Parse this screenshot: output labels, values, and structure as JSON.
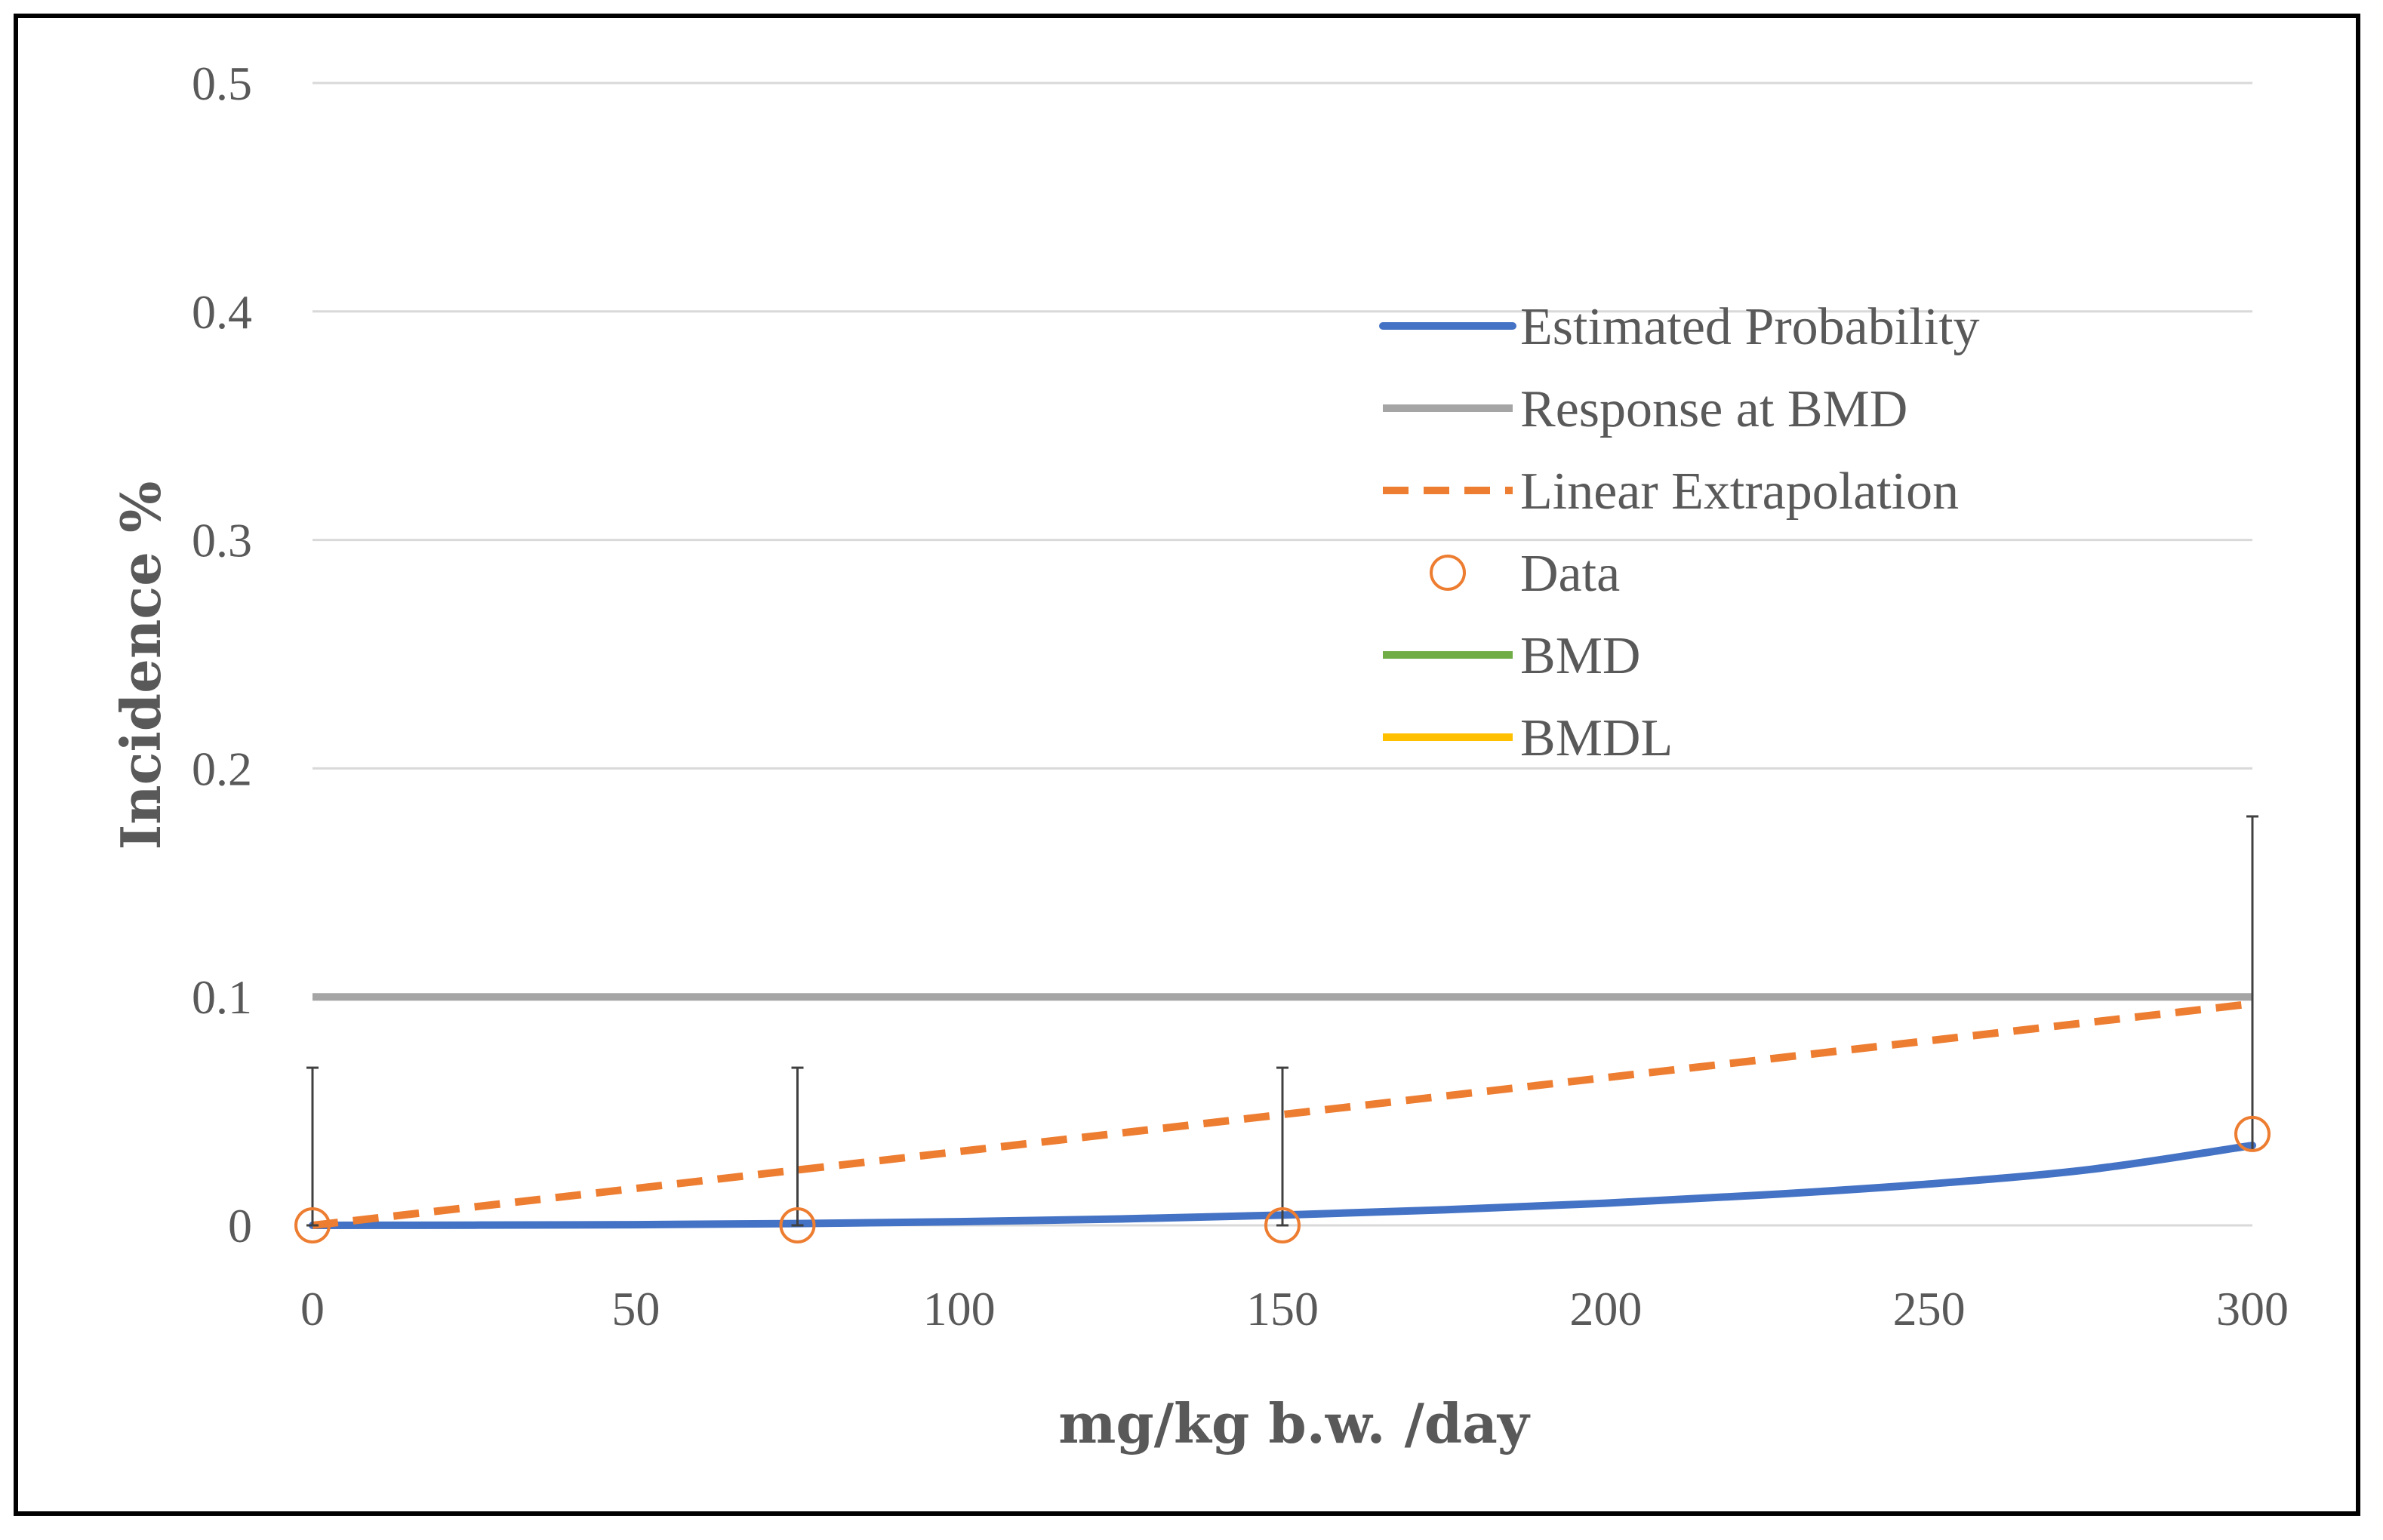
{
  "chart_data": {
    "type": "line",
    "title": "",
    "xlabel": "mg/kg b.w. /day",
    "ylabel": "Incidence %",
    "xlim": [
      0,
      300
    ],
    "ylim": [
      0,
      0.5
    ],
    "x_ticks": [
      0,
      50,
      100,
      150,
      200,
      250,
      300
    ],
    "x_tick_labels": [
      "0",
      "50",
      "100",
      "150",
      "200",
      "250",
      "300"
    ],
    "y_ticks": [
      0,
      0.1,
      0.2,
      0.3,
      0.4,
      0.5
    ],
    "y_tick_labels": [
      "0",
      "0.1",
      "0.2",
      "0.3",
      "0.4",
      "0.5"
    ],
    "grid": true,
    "legend_position": "upper-right",
    "series": [
      {
        "name": "Estimated Probability",
        "kind": "line",
        "color": "#4472C4",
        "x": [
          0,
          25,
          50,
          75,
          100,
          125,
          150,
          175,
          200,
          225,
          250,
          275,
          300
        ],
        "y": [
          0,
          0.0001,
          0.0003,
          0.0008,
          0.0016,
          0.0028,
          0.0045,
          0.0068,
          0.0097,
          0.0134,
          0.0181,
          0.0245,
          0.035
        ]
      },
      {
        "name": "Response at BMD",
        "kind": "line",
        "color": "#A5A5A5",
        "x": [
          0,
          300
        ],
        "y": [
          0.1,
          0.1
        ]
      },
      {
        "name": "Linear Extrapolation",
        "kind": "dashed-line",
        "color": "#ED7D31",
        "x": [
          0,
          300
        ],
        "y": [
          0,
          0.097
        ]
      },
      {
        "name": "Data",
        "kind": "scatter",
        "color": "#ED7D31",
        "x": [
          0,
          75,
          150,
          300
        ],
        "y": [
          0,
          0,
          0,
          0.04
        ],
        "error_low": [
          0,
          0,
          0,
          0.007
        ],
        "error_high": [
          0.069,
          0.069,
          0.069,
          0.139
        ]
      },
      {
        "name": "BMD",
        "kind": "line",
        "color": "#70AD47",
        "x": [],
        "y": []
      },
      {
        "name": "BMDL",
        "kind": "line",
        "color": "#FFC000",
        "x": [],
        "y": []
      }
    ]
  }
}
